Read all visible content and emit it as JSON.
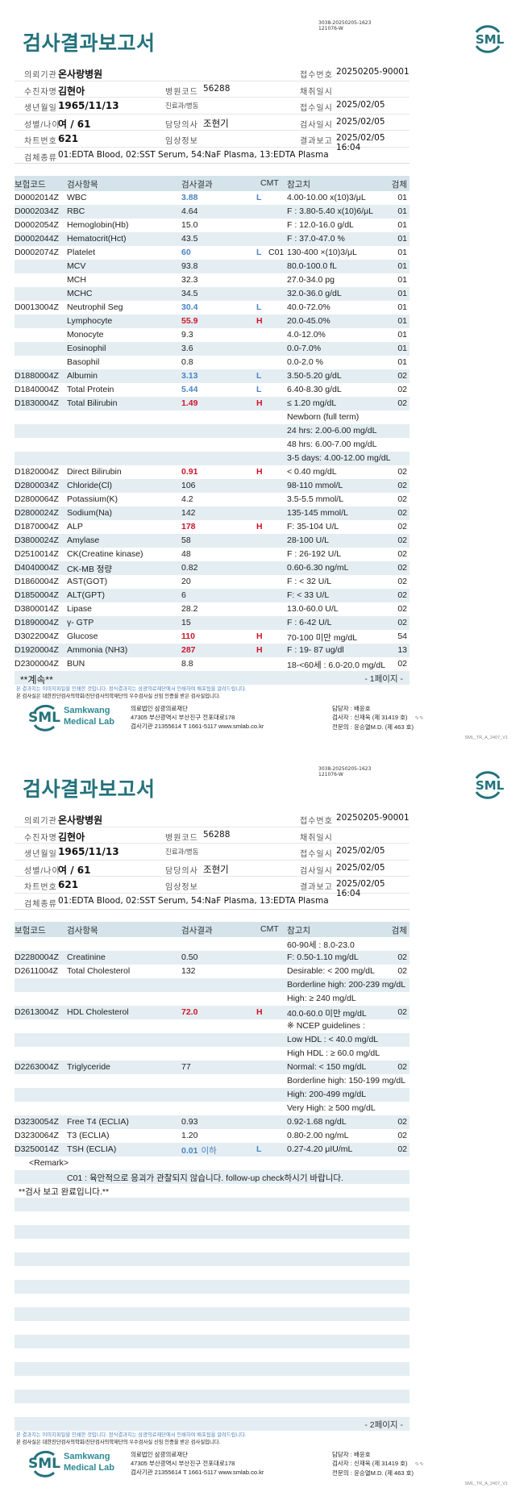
{
  "colors": {
    "title": "#23727c",
    "low": "#4a84c4",
    "high": "#d0142c",
    "stripe": "#e4eef2",
    "header_band": "#d5e4eb"
  },
  "report": {
    "title": "검사결과보고서",
    "code_line1": "3038-20250205-1623",
    "code_line2": "121076-W",
    "logo_text": "SML",
    "info": {
      "institution_label": "의뢰기관",
      "institution": "온사랑병원",
      "receipt_no_label": "접수번호",
      "receipt_no": "20250205-90001",
      "patient_label": "수진자명",
      "patient": "김현아",
      "hospital_code_label": "병원코드",
      "hospital_code": "56288",
      "collection_label": "채취일시",
      "collection": "",
      "birth_label": "생년월일",
      "birth": "1965/11/13",
      "dept_label": "진료과/병동",
      "dept": "",
      "receipt_date_label": "접수일시",
      "receipt_date": "2025/02/05",
      "sex_age_label": "성별/나이",
      "sex_age": "여 / 61",
      "doctor_label": "담당의사",
      "doctor": "조현기",
      "test_date_label": "검사일시",
      "test_date": "2025/02/05",
      "chart_label": "차트번호",
      "chart": "621",
      "clinical_label": "임상정보",
      "clinical": "",
      "report_label": "결과보고",
      "report_date": "2025/02/05 16:04",
      "specimen_label": "검체종류",
      "specimen": "01:EDTA Blood, 02:SST Serum, 54:NaF Plasma, 13:EDTA Plasma"
    },
    "columns": {
      "code": "보험코드",
      "name": "검사항목",
      "result": "검사결과",
      "cmt": "CMT",
      "ref": "참고치",
      "specimen": "검체"
    }
  },
  "pages": [
    {
      "page_label": "- 1페이지 -",
      "continue_text": "**계속**",
      "rows": [
        {
          "code": "D0002014Z",
          "name": "WBC",
          "result": "3.88",
          "flag": "L",
          "cmt": "",
          "ref": "4.00-10.00 x(10)3/μL",
          "spec": "01"
        },
        {
          "code": "D0002034Z",
          "name": "RBC",
          "result": "4.64",
          "flag": "",
          "cmt": "",
          "ref": "F : 3.80-5.40 x(10)6/μL",
          "spec": "01"
        },
        {
          "code": "D0002054Z",
          "name": "Hemoglobin(Hb)",
          "result": "15.0",
          "flag": "",
          "cmt": "",
          "ref": "F : 12.0-16.0 g/dL",
          "spec": "01"
        },
        {
          "code": "D0002044Z",
          "name": "Hematocrit(Hct)",
          "result": "43.5",
          "flag": "",
          "cmt": "",
          "ref": "F : 37.0-47.0 %",
          "spec": "01"
        },
        {
          "code": "D0002074Z",
          "name": "Platelet",
          "result": "60",
          "flag": "L",
          "cmt": "C01",
          "ref": "130-400 ×(10)3/μL",
          "spec": "01"
        },
        {
          "code": "",
          "name": "MCV",
          "result": "93.8",
          "flag": "",
          "cmt": "",
          "ref": "80.0-100.0 fL",
          "spec": "01"
        },
        {
          "code": "",
          "name": "MCH",
          "result": "32.3",
          "flag": "",
          "cmt": "",
          "ref": "27.0-34.0 pg",
          "spec": "01"
        },
        {
          "code": "",
          "name": "MCHC",
          "result": "34.5",
          "flag": "",
          "cmt": "",
          "ref": "32.0-36.0 g/dL",
          "spec": "01"
        },
        {
          "code": "D0013004Z",
          "name": "Neutrophil Seg",
          "result": "30.4",
          "flag": "L",
          "cmt": "",
          "ref": "40.0-72.0%",
          "spec": "01"
        },
        {
          "code": "",
          "name": "Lymphocyte",
          "result": "55.9",
          "flag": "H",
          "cmt": "",
          "ref": "20.0-45.0%",
          "spec": "01"
        },
        {
          "code": "",
          "name": "Monocyte",
          "result": "9.3",
          "flag": "",
          "cmt": "",
          "ref": "4.0-12.0%",
          "spec": "01"
        },
        {
          "code": "",
          "name": "Eosinophil",
          "result": "3.6",
          "flag": "",
          "cmt": "",
          "ref": "0.0-7.0%",
          "spec": "01"
        },
        {
          "code": "",
          "name": "Basophil",
          "result": "0.8",
          "flag": "",
          "cmt": "",
          "ref": "0.0-2.0 %",
          "spec": "01"
        },
        {
          "code": "D1880004Z",
          "name": "Albumin",
          "result": "3.13",
          "flag": "L",
          "cmt": "",
          "ref": "3.50-5.20 g/dL",
          "spec": "02"
        },
        {
          "code": "D1840004Z",
          "name": "Total Protein",
          "result": "5.44",
          "flag": "L",
          "cmt": "",
          "ref": "6.40-8.30 g/dL",
          "spec": "02"
        },
        {
          "code": "D1830004Z",
          "name": "Total Bilirubin",
          "result": "1.49",
          "flag": "H",
          "cmt": "",
          "ref": "≤ 1.20 mg/dL",
          "spec": "02"
        },
        {
          "code": "",
          "name": "",
          "result": "",
          "flag": "",
          "cmt": "",
          "ref": "Newborn (full term)",
          "spec": ""
        },
        {
          "code": "",
          "name": "",
          "result": "",
          "flag": "",
          "cmt": "",
          "ref": "24 hrs: 2.00-6.00 mg/dL",
          "spec": ""
        },
        {
          "code": "",
          "name": "",
          "result": "",
          "flag": "",
          "cmt": "",
          "ref": "48 hrs: 6.00-7.00 mg/dL",
          "spec": ""
        },
        {
          "code": "",
          "name": "",
          "result": "",
          "flag": "",
          "cmt": "",
          "ref": "3-5 days: 4.00-12.00 mg/dL",
          "spec": ""
        },
        {
          "code": "D1820004Z",
          "name": "Direct Bilirubin",
          "result": "0.91",
          "flag": "H",
          "cmt": "",
          "ref": "< 0.40 mg/dL",
          "spec": "02"
        },
        {
          "code": "D2800034Z",
          "name": "Chloride(Cl)",
          "result": "106",
          "flag": "",
          "cmt": "",
          "ref": "98-110 mmol/L",
          "spec": "02"
        },
        {
          "code": "D2800064Z",
          "name": "Potassium(K)",
          "result": "4.2",
          "flag": "",
          "cmt": "",
          "ref": "3.5-5.5 mmol/L",
          "spec": "02"
        },
        {
          "code": "D2800024Z",
          "name": "Sodium(Na)",
          "result": "142",
          "flag": "",
          "cmt": "",
          "ref": "135-145 mmol/L",
          "spec": "02"
        },
        {
          "code": "D1870004Z",
          "name": "ALP",
          "result": "178",
          "flag": "H",
          "cmt": "",
          "ref": "F: 35-104 U/L",
          "spec": "02"
        },
        {
          "code": "D3800024Z",
          "name": "Amylase",
          "result": "58",
          "flag": "",
          "cmt": "",
          "ref": "28-100 U/L",
          "spec": "02"
        },
        {
          "code": "D2510014Z",
          "name": "CK(Creatine kinase)",
          "result": "48",
          "flag": "",
          "cmt": "",
          "ref": "F : 26-192 U/L",
          "spec": "02"
        },
        {
          "code": "D4040004Z",
          "name": "CK-MB 정량",
          "result": "0.82",
          "flag": "",
          "cmt": "",
          "ref": "0.60-6.30 ng/mL",
          "spec": "02"
        },
        {
          "code": "D1860004Z",
          "name": "AST(GOT)",
          "result": "20",
          "flag": "",
          "cmt": "",
          "ref": "F : < 32 U/L",
          "spec": "02"
        },
        {
          "code": "D1850004Z",
          "name": "ALT(GPT)",
          "result": "6",
          "flag": "",
          "cmt": "",
          "ref": "F: < 33 U/L",
          "spec": "02"
        },
        {
          "code": "D3800014Z",
          "name": "Lipase",
          "result": "28.2",
          "flag": "",
          "cmt": "",
          "ref": "13.0-60.0 U/L",
          "spec": "02"
        },
        {
          "code": "D1890004Z",
          "name": "γ- GTP",
          "result": "15",
          "flag": "",
          "cmt": "",
          "ref": "F : 6-42 U/L",
          "spec": "02"
        },
        {
          "code": "D3022004Z",
          "name": "Glucose",
          "result": "110",
          "flag": "H",
          "cmt": "",
          "ref": "70-100 미만 mg/dL",
          "spec": "54"
        },
        {
          "code": "D1920004Z",
          "name": "Ammonia (NH3)",
          "result": "287",
          "flag": "H",
          "cmt": "",
          "ref": "F : 19- 87 ug/dl",
          "spec": "13"
        },
        {
          "code": "D2300004Z",
          "name": "BUN",
          "result": "8.8",
          "flag": "",
          "cmt": "",
          "ref": "18-<60세 : 6.0-20.0 mg/dL",
          "spec": "02"
        }
      ]
    },
    {
      "page_label": "- 2페이지 -",
      "continue_text": "",
      "rows": [
        {
          "code": "",
          "name": "",
          "result": "",
          "flag": "",
          "cmt": "",
          "ref": "60-90세 : 8.0-23.0",
          "spec": ""
        },
        {
          "code": "D2280004Z",
          "name": "Creatinine",
          "result": "0.50",
          "flag": "",
          "cmt": "",
          "ref": "F: 0.50-1.10 mg/dL",
          "spec": "02"
        },
        {
          "code": "D2611004Z",
          "name": "Total Cholesterol",
          "result": "132",
          "flag": "",
          "cmt": "",
          "ref": "Desirable: < 200 mg/dL",
          "spec": "02"
        },
        {
          "code": "",
          "name": "",
          "result": "",
          "flag": "",
          "cmt": "",
          "ref": "Borderline high: 200-239 mg/dL",
          "spec": ""
        },
        {
          "code": "",
          "name": "",
          "result": "",
          "flag": "",
          "cmt": "",
          "ref": "High: ≥ 240 mg/dL",
          "spec": ""
        },
        {
          "code": "D2613004Z",
          "name": "HDL Cholesterol",
          "result": "72.0",
          "flag": "H",
          "cmt": "",
          "ref": "40.0-60.0 미만 mg/dL",
          "spec": "02"
        },
        {
          "code": "",
          "name": "",
          "result": "",
          "flag": "",
          "cmt": "",
          "ref": "※ NCEP guidelines :",
          "spec": ""
        },
        {
          "code": "",
          "name": "",
          "result": "",
          "flag": "",
          "cmt": "",
          "ref": "Low HDL : < 40.0 mg/dL",
          "spec": ""
        },
        {
          "code": "",
          "name": "",
          "result": "",
          "flag": "",
          "cmt": "",
          "ref": "High HDL : ≥ 60.0 mg/dL",
          "spec": ""
        },
        {
          "code": "D2263004Z",
          "name": "Triglyceride",
          "result": "77",
          "flag": "",
          "cmt": "",
          "ref": "Normal: < 150 mg/dL",
          "spec": "02"
        },
        {
          "code": "",
          "name": "",
          "result": "",
          "flag": "",
          "cmt": "",
          "ref": "Borderline high: 150-199 mg/dL",
          "spec": ""
        },
        {
          "code": "",
          "name": "",
          "result": "",
          "flag": "",
          "cmt": "",
          "ref": "High: 200-499 mg/dL",
          "spec": ""
        },
        {
          "code": "",
          "name": "",
          "result": "",
          "flag": "",
          "cmt": "",
          "ref": "Very High: ≥ 500 mg/dL",
          "spec": ""
        },
        {
          "code": "D3230054Z",
          "name": "Free T4 (ECLIA)",
          "result": "0.93",
          "flag": "",
          "cmt": "",
          "ref": "0.92-1.68 ng/dL",
          "spec": "02"
        },
        {
          "code": "D3230064Z",
          "name": "T3 (ECLIA)",
          "result": "1.20",
          "flag": "",
          "cmt": "",
          "ref": "0.80-2.00 ng/mL",
          "spec": "02"
        },
        {
          "code": "D3250014Z",
          "name": "TSH (ECLIA)",
          "result": "0.01",
          "result_suffix": "이하",
          "flag": "L",
          "cmt": "",
          "ref": "0.27-4.20 μIU/mL",
          "spec": "02"
        },
        {
          "type": "remark_header",
          "text": "<Remark>"
        },
        {
          "type": "remark",
          "text": "C01 : 육안적으로 응괴가 관찰되지 않습니다. follow-up check하시기 바랍니다."
        },
        {
          "type": "end",
          "text": "**검사 보고 완료입니다.**"
        }
      ]
    }
  ],
  "footer": {
    "note1": "본 결과지는 이미지파일을 인쇄한 것입니다. 정식결과지는 삼광의료재단에서 인쇄하여 배포됨을 알려드립니다.",
    "note2": "본 검사실은 대한진단검사의학회/진단검사의학재단의 우수검사실 신임 인증을 받은 검사실입니다.",
    "logo_sml": "SML",
    "logo_line1": "Samkwang",
    "logo_line2": "Medical Lab",
    "org": "의료법인 삼광의료재단",
    "address": "47305 부산광역시 부산진구 전포대로178",
    "contact": "검사기관 21355614 T 1661-5117 www.smlab.co.kr",
    "manager": "담당자 : 배윤호",
    "tester": "검사자 : 신재욱 (제 31419 호)",
    "specialist": "전문의 : 윤승열M.D. (제 463 호)",
    "form_code": "SML_TR_A_2407_V1"
  }
}
